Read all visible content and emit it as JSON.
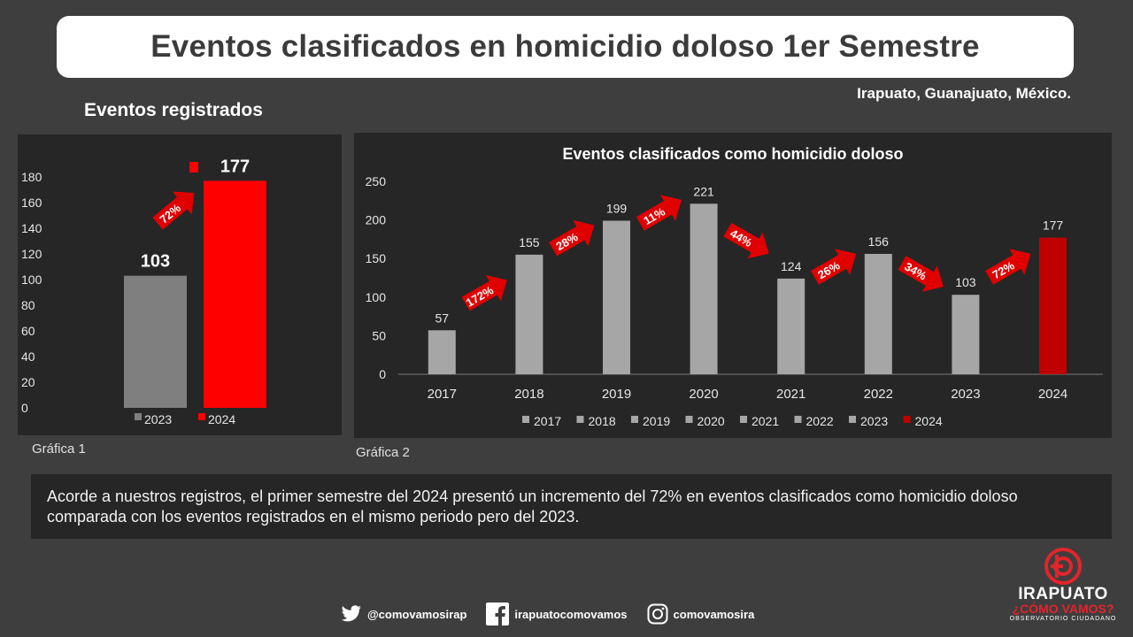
{
  "header": {
    "title": "Eventos clasificados en homicidio doloso 1er Semestre"
  },
  "location": "Irapuato, Guanajuato, México.",
  "section_title": "Eventos registrados",
  "captions": {
    "chart1": "Gráfica 1",
    "chart2": "Gráfica 2"
  },
  "conclusion": "Acorde a nuestros registros, el primer semestre del 2024 presentó un incremento del 72% en eventos clasificados como homicidio doloso comparada con los eventos registrados en el mismo periodo pero del 2023.",
  "footer": {
    "twitter": "@comovamosirap",
    "facebook": "irapuatocomovamos",
    "instagram": "comovamosira"
  },
  "logo": {
    "line1": "IRAPUATO",
    "line2": "¿CÓMO VAMOS?",
    "line3": "OBSERVATORIO CIUDADANO"
  },
  "colors": {
    "gray_bar": "#a6a6a6",
    "gray_bar_dark": "#7f7f7f",
    "red": "#ff0000",
    "dark_red": "#c00000",
    "arrow_red": "#e00000"
  },
  "chart_data": [
    {
      "type": "bar",
      "title": "",
      "categories": [
        "2023",
        "2024"
      ],
      "values": [
        103,
        177
      ],
      "ylim": [
        0,
        180
      ],
      "yticks": [
        0,
        20,
        40,
        60,
        80,
        100,
        120,
        140,
        160,
        180
      ],
      "colors": [
        "#7f7f7f",
        "#ff0000"
      ],
      "legend": [
        "2023",
        "2024"
      ],
      "annotations": [
        {
          "text": "72%",
          "direction": "up"
        }
      ]
    },
    {
      "type": "bar",
      "title": "Eventos clasificados como homicidio doloso",
      "categories": [
        "2017",
        "2018",
        "2019",
        "2020",
        "2021",
        "2022",
        "2023",
        "2024"
      ],
      "values": [
        57,
        155,
        199,
        221,
        124,
        156,
        103,
        177
      ],
      "ylim": [
        0,
        250
      ],
      "yticks": [
        0,
        50,
        100,
        150,
        200,
        250
      ],
      "colors": [
        "#a6a6a6",
        "#a6a6a6",
        "#a6a6a6",
        "#a6a6a6",
        "#a6a6a6",
        "#a6a6a6",
        "#a6a6a6",
        "#c00000"
      ],
      "legend": [
        "2017",
        "2018",
        "2019",
        "2020",
        "2021",
        "2022",
        "2023",
        "2024"
      ],
      "annotations": [
        {
          "text": "172%",
          "direction": "up"
        },
        {
          "text": "28%",
          "direction": "up"
        },
        {
          "text": "11%",
          "direction": "up"
        },
        {
          "text": "44%",
          "direction": "down"
        },
        {
          "text": "26%",
          "direction": "up"
        },
        {
          "text": "34%",
          "direction": "down"
        },
        {
          "text": "72%",
          "direction": "up"
        }
      ]
    }
  ]
}
